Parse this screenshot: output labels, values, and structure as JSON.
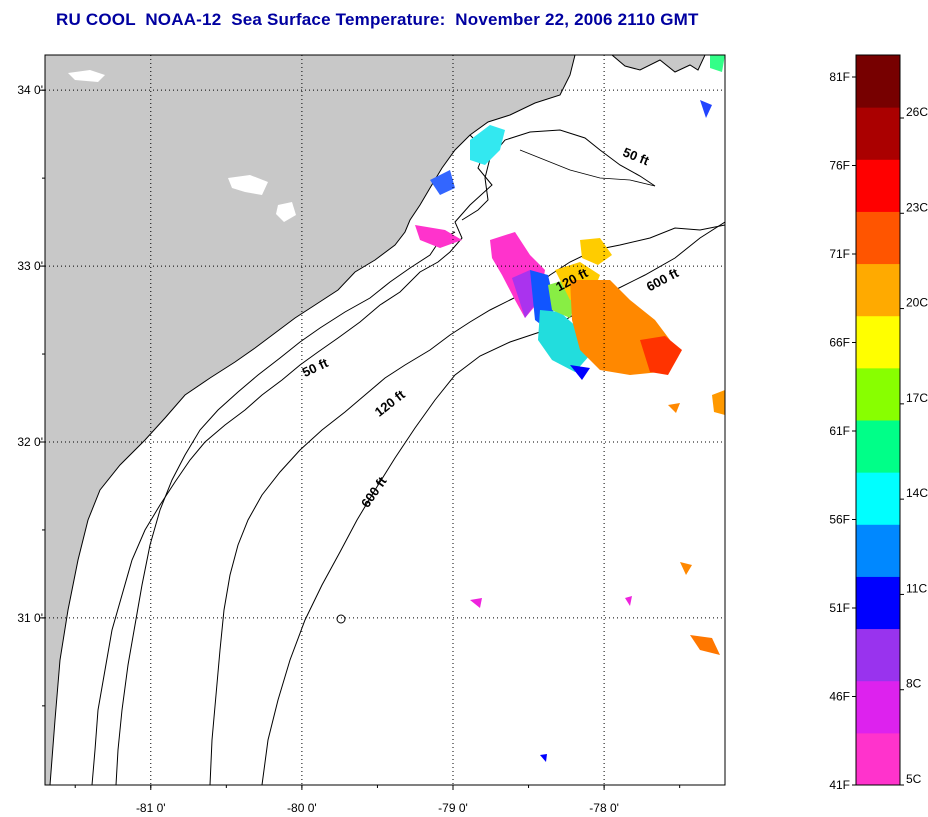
{
  "title": "RU COOL  NOAA-12  Sea Surface Temperature:  November 22, 2006 2110 GMT",
  "map": {
    "lon_range": [
      -81.7,
      -77.2
    ],
    "lat_range": [
      30.05,
      34.2
    ],
    "lon_ticks": [
      {
        "value": -81,
        "label": "-81 0'"
      },
      {
        "value": -80,
        "label": "-80 0'"
      },
      {
        "value": -79,
        "label": "-79 0'"
      },
      {
        "value": -78,
        "label": "-78 0'"
      }
    ],
    "lat_ticks": [
      {
        "value": 34,
        "label": "34 0'"
      },
      {
        "value": 33,
        "label": "33 0'"
      },
      {
        "value": 32,
        "label": "32 0'"
      },
      {
        "value": 31,
        "label": "31 0'"
      }
    ],
    "grid": "dotted",
    "land_color": "#c8c8c8",
    "contour_labels": [
      {
        "text": "50 ft",
        "lon": -77.8,
        "lat": 33.6,
        "rotate": 22
      },
      {
        "text": "120 ft",
        "lon": -78.2,
        "lat": 32.9,
        "rotate": -28
      },
      {
        "text": "600 ft",
        "lon": -77.6,
        "lat": 32.9,
        "rotate": -28
      },
      {
        "text": "50 ft",
        "lon": -79.9,
        "lat": 32.4,
        "rotate": -25
      },
      {
        "text": "120 ft",
        "lon": -79.4,
        "lat": 32.2,
        "rotate": -38
      },
      {
        "text": "600 ft",
        "lon": -79.5,
        "lat": 31.7,
        "rotate": -55
      }
    ]
  },
  "colorbar": {
    "fahrenheit_labels": [
      "81F",
      "76F",
      "71F",
      "66F",
      "61F",
      "56F",
      "51F",
      "46F",
      "41F"
    ],
    "celsius_labels": [
      "26C",
      "23C",
      "20C",
      "17C",
      "14C",
      "11C",
      "8C",
      "5C"
    ],
    "colors": [
      "#ff33cc",
      "#dd22ee",
      "#9933ee",
      "#0000ff",
      "#0088ff",
      "#00ffff",
      "#00ff88",
      "#88ff00",
      "#ffff00",
      "#ffaa00",
      "#ff5500",
      "#ff0000",
      "#aa0000",
      "#770000"
    ]
  }
}
